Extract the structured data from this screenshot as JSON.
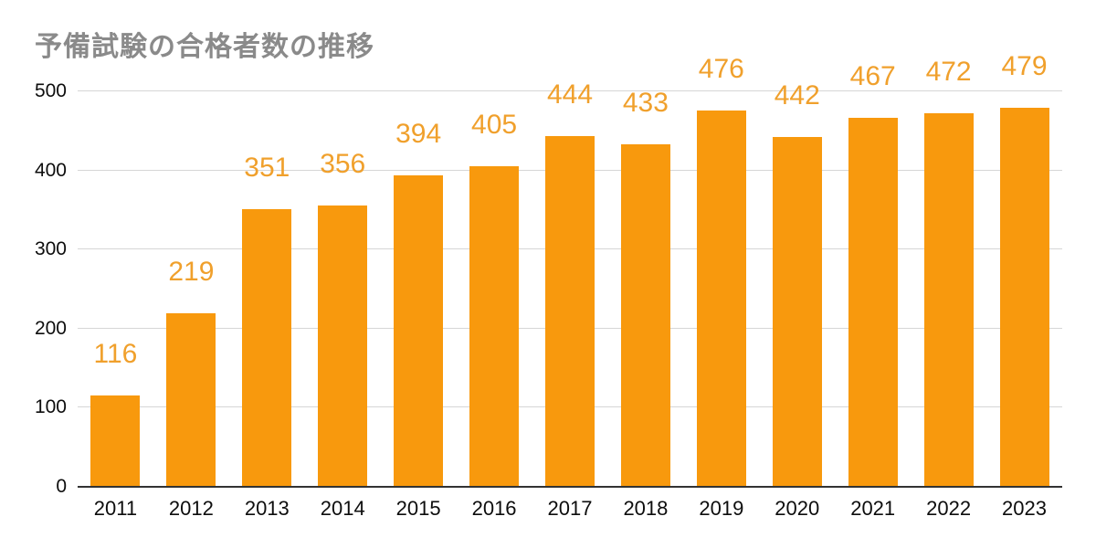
{
  "chart_data": {
    "type": "bar",
    "title": "予備試験の合格者数の推移",
    "categories": [
      "2011",
      "2012",
      "2013",
      "2014",
      "2015",
      "2016",
      "2017",
      "2018",
      "2019",
      "2020",
      "2021",
      "2022",
      "2023"
    ],
    "values": [
      116,
      219,
      351,
      356,
      394,
      405,
      444,
      433,
      476,
      442,
      467,
      472,
      479
    ],
    "xlabel": "",
    "ylabel": "",
    "ylim": [
      0,
      500
    ],
    "yticks": [
      0,
      100,
      200,
      300,
      400,
      500
    ],
    "grid": true,
    "legend": "none",
    "data_labels": "above-bars",
    "colors": {
      "bar": "#F8990D",
      "value_label": "#F0A02C",
      "title": "#8A8A8A",
      "tick_label": "#0D0D0D",
      "gridline": "#D6D6D6",
      "axis_line": "#333333",
      "background": "#FFFFFF"
    }
  }
}
